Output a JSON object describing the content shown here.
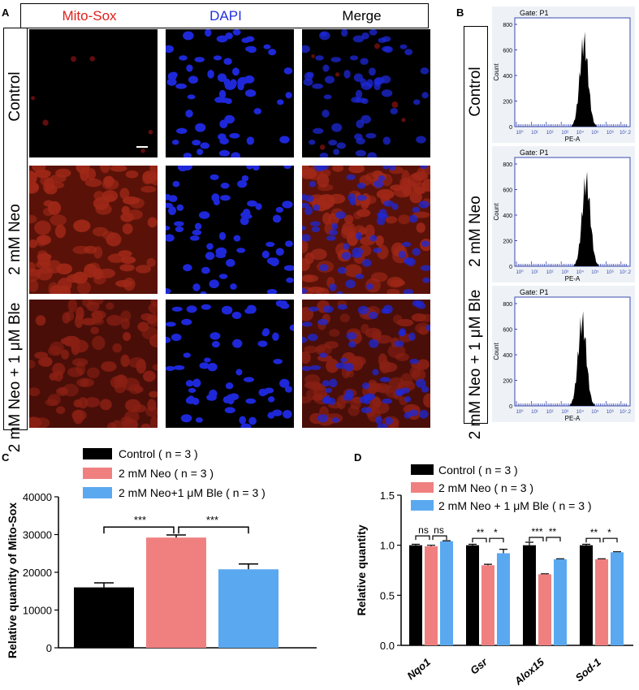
{
  "panelA": {
    "letter": "A",
    "columns": [
      "Mito-Sox",
      "DAPI",
      "Merge"
    ],
    "column_colors": [
      "#e0201c",
      "#2030e0",
      "#000000"
    ],
    "rows": [
      "Control",
      "2 mM Neo",
      "2 mM Neo + 1 μM Ble"
    ]
  },
  "panelB": {
    "letter": "B",
    "rows": [
      "Control",
      "2 mM Neo",
      "2 mM Neo + 1 μM Ble"
    ],
    "gate_label": "Gate: P1",
    "ylabel": "Count",
    "xlabel": "PE-A",
    "yticks": [
      "0",
      "200",
      "400",
      "600",
      "800"
    ],
    "xticks": [
      "10⁰",
      "10¹",
      "10²",
      "10³",
      "10⁴",
      "10⁵",
      "10⁶",
      "10⁷.2"
    ]
  },
  "panelC": {
    "letter": "C",
    "legend": [
      "Control ( n = 3 )",
      "2 mM Neo ( n = 3 )",
      "2 mM Neo+1 μM Ble ( n = 3 )"
    ],
    "significance": [
      "***",
      "***"
    ]
  },
  "panelD": {
    "letter": "D",
    "legend": [
      "Control ( n = 3 )",
      "2 mM Neo ( n = 3 )",
      "2 mM Neo + 1 μM Ble ( n = 3 )"
    ],
    "significance": [
      "ns",
      "ns",
      "**",
      "*",
      "***",
      "**",
      "**",
      "*"
    ]
  },
  "chart_data": [
    {
      "id": "C",
      "type": "bar",
      "categories": [
        "Control",
        "2 mM Neo",
        "2 mM Neo+1 μM Ble"
      ],
      "values": [
        16000,
        29200,
        20800
      ],
      "errors": [
        1200,
        700,
        1400
      ],
      "colors": [
        "#000000",
        "#f08080",
        "#5aa9f0"
      ],
      "ylabel": "Relative quantity of Mito-Sox",
      "ylim": [
        0,
        40000
      ],
      "yticks": [
        0,
        10000,
        20000,
        30000,
        40000
      ],
      "ytick_labels": [
        "0",
        "10000",
        "20000",
        "30000",
        "40000"
      ]
    },
    {
      "id": "D",
      "type": "bar",
      "categories": [
        "Nqo1",
        "Gsr",
        "Alox15",
        "Sod-1"
      ],
      "series": [
        {
          "name": "Control ( n = 3 )",
          "color": "#000000",
          "values": [
            1.0,
            1.0,
            1.0,
            1.0
          ],
          "errors": [
            0.01,
            0.01,
            0.03,
            0.01
          ]
        },
        {
          "name": "2 mM Neo ( n = 3 )",
          "color": "#f08080",
          "values": [
            0.99,
            0.8,
            0.71,
            0.86
          ],
          "errors": [
            0.01,
            0.01,
            0.005,
            0.005
          ]
        },
        {
          "name": "2 mM Neo + 1 μM Ble ( n = 3 )",
          "color": "#5aa9f0",
          "values": [
            1.04,
            0.92,
            0.86,
            0.93
          ],
          "errors": [
            0.005,
            0.04,
            0.005,
            0.005
          ]
        }
      ],
      "ylabel": "Relative quantity",
      "ylim": [
        0,
        1.5
      ],
      "yticks": [
        0,
        0.5,
        1.0,
        1.5
      ],
      "ytick_labels": [
        "0.0",
        "0.5",
        "1.0",
        "1.5"
      ]
    }
  ]
}
